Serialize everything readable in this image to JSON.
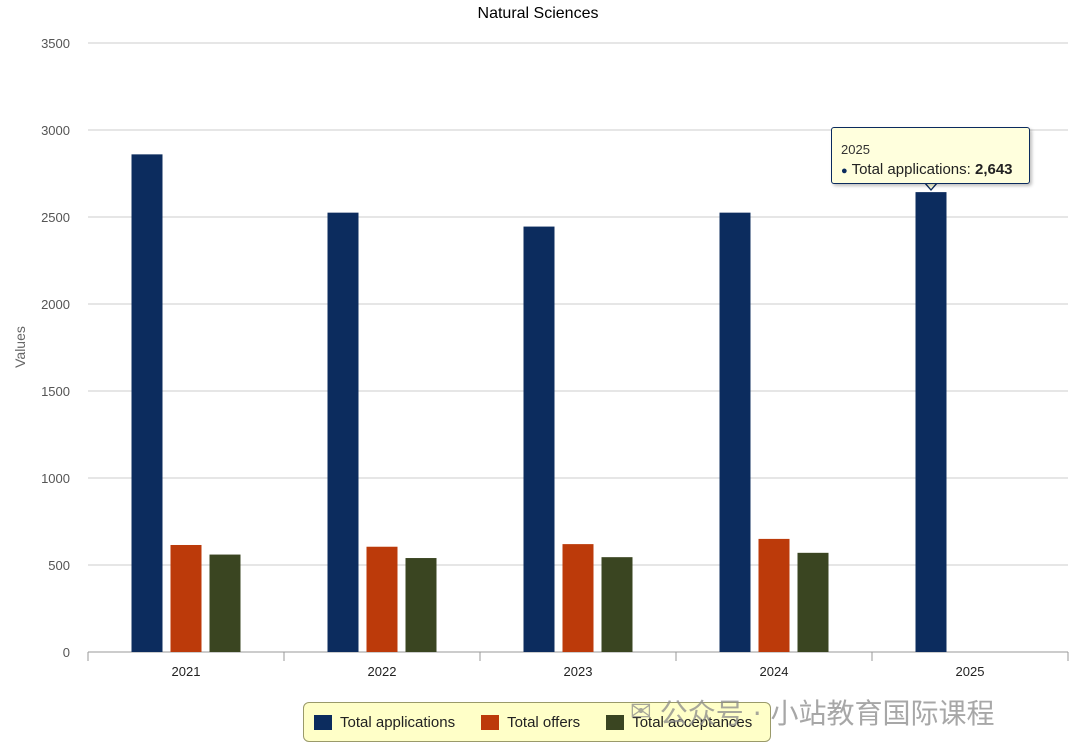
{
  "chart_data": {
    "type": "bar",
    "title": "Natural Sciences",
    "ylabel": "Values",
    "xlabel": "",
    "ylim": [
      0,
      3500
    ],
    "yticks": [
      0,
      500,
      1000,
      1500,
      2000,
      2500,
      3000,
      3500
    ],
    "categories": [
      "2021",
      "2022",
      "2023",
      "2024",
      "2025"
    ],
    "series": [
      {
        "name": "Total applications",
        "color": "#0c2c5e",
        "values": [
          2860,
          2525,
          2445,
          2525,
          2643
        ]
      },
      {
        "name": "Total offers",
        "color": "#bc3a0a",
        "values": [
          615,
          605,
          620,
          650,
          null
        ]
      },
      {
        "name": "Total acceptances",
        "color": "#3a4521",
        "values": [
          560,
          540,
          545,
          570,
          null
        ]
      }
    ],
    "grid": true,
    "legend_placement": "bottom"
  },
  "tooltip": {
    "category": "2025",
    "bullet": "●",
    "series_label": "Total applications:",
    "value": "2,643"
  },
  "watermark": {
    "icon": "wechat-icon",
    "text": "公众号 · 小站教育国际课程"
  }
}
